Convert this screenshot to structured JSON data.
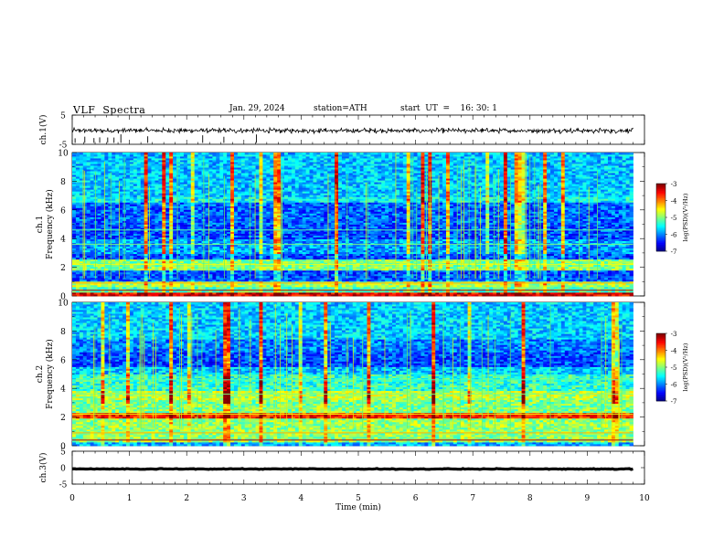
{
  "header": {
    "title": "VLF  Spectra",
    "date": "Jan. 29, 2024",
    "station": "station=ATH",
    "start": "start  UT  =    16: 30: 1"
  },
  "chart_data": [
    {
      "type": "line",
      "name": "ch1-waveform",
      "ylabel": "ch.1(V)",
      "ylim": [
        -5,
        5
      ],
      "yticks": [
        "5",
        "-5"
      ],
      "xlim": [
        0,
        10
      ],
      "signal": {
        "baseline": -0.3,
        "amplitude_v": 1.0,
        "spike_times_min": [
          0.05,
          0.22,
          0.38,
          0.48,
          0.62,
          0.73,
          0.85,
          1.32,
          2.28,
          2.65,
          3.22
        ]
      }
    },
    {
      "type": "heatmap",
      "name": "ch1-spectrogram",
      "ylabel": "ch.1\nFrequency (kHz)",
      "ylim": [
        0,
        10
      ],
      "yticks": [
        "0",
        "2",
        "4",
        "6",
        "8",
        "10"
      ],
      "xlim": [
        0,
        9.8
      ],
      "colorbar": {
        "label": "log(PSD)(V²/Hz)",
        "ticks": [
          "-3",
          "-4",
          "-5",
          "-6",
          "-7"
        ],
        "range": [
          -7,
          -3
        ]
      }
    },
    {
      "type": "heatmap",
      "name": "ch2-spectrogram",
      "ylabel": "ch.2\nFrequency (kHz)",
      "ylim": [
        0,
        10
      ],
      "yticks": [
        "0",
        "2",
        "4",
        "6",
        "8",
        "10"
      ],
      "xlim": [
        0,
        9.8
      ],
      "colorbar": {
        "label": "log(PSD)(V²/Hz)",
        "ticks": [
          "-3",
          "-4",
          "-5",
          "-6",
          "-7"
        ],
        "range": [
          -7,
          -3
        ]
      }
    },
    {
      "type": "line",
      "name": "ch3-waveform",
      "ylabel": "ch.3(V)",
      "ylim": [
        -5,
        5
      ],
      "yticks": [
        "5",
        "0",
        "-5"
      ],
      "xlim": [
        0,
        10
      ],
      "signal": {
        "baseline": -0.4,
        "amplitude_v": 0.15
      }
    }
  ],
  "xaxis": {
    "label": "Time  (min)",
    "ticks": [
      "0",
      "1",
      "2",
      "3",
      "4",
      "5",
      "6",
      "7",
      "8",
      "9",
      "10"
    ],
    "range": [
      0,
      10
    ]
  }
}
